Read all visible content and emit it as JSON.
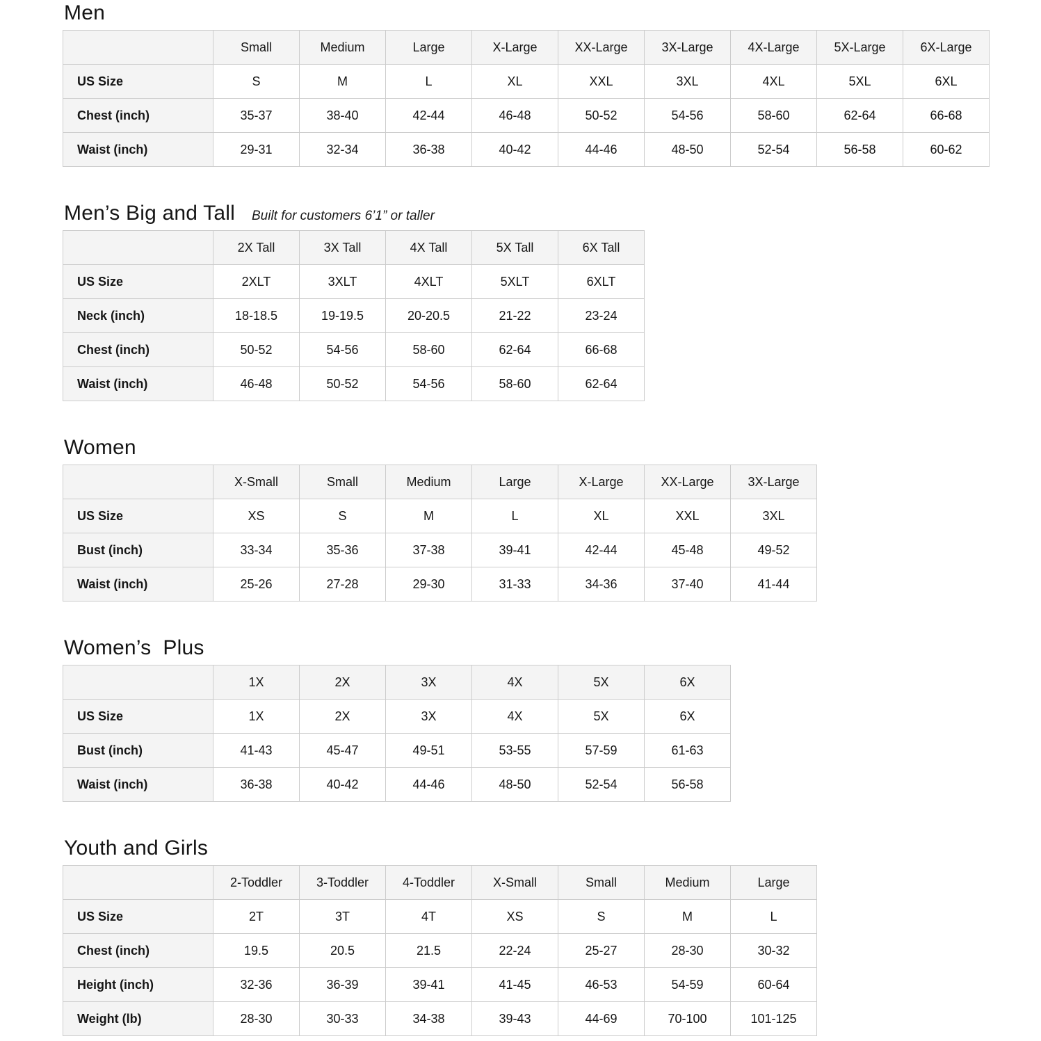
{
  "colors": {
    "header_bg": "#f4f4f4",
    "label_bg": "#f4f4f4",
    "cell_bg": "#ffffff",
    "border": "#cccccc",
    "text": "#161616"
  },
  "tables": [
    {
      "id": "men",
      "title": "Men",
      "subtitle": "",
      "columns": [
        "Small",
        "Medium",
        "Large",
        "X-Large",
        "XX-Large",
        "3X-Large",
        "4X-Large",
        "5X-Large",
        "6X-Large"
      ],
      "rows": [
        {
          "label": "US Size",
          "values": [
            "S",
            "M",
            "L",
            "XL",
            "XXL",
            "3XL",
            "4XL",
            "5XL",
            "6XL"
          ]
        },
        {
          "label": "Chest (inch)",
          "values": [
            "35-37",
            "38-40",
            "42-44",
            "46-48",
            "50-52",
            "54-56",
            "58-60",
            "62-64",
            "66-68"
          ]
        },
        {
          "label": "Waist (inch)",
          "values": [
            "29-31",
            "32-34",
            "36-38",
            "40-42",
            "44-46",
            "48-50",
            "52-54",
            "56-58",
            "60-62"
          ]
        }
      ]
    },
    {
      "id": "mens-big-and-tall",
      "title": "Men’s Big and Tall",
      "subtitle": "Built for customers 6’1” or taller",
      "columns": [
        "2X Tall",
        "3X Tall",
        "4X Tall",
        "5X Tall",
        "6X Tall"
      ],
      "rows": [
        {
          "label": "US Size",
          "values": [
            "2XLT",
            "3XLT",
            "4XLT",
            "5XLT",
            "6XLT"
          ]
        },
        {
          "label": "Neck (inch)",
          "values": [
            "18-18.5",
            "19-19.5",
            "20-20.5",
            "21-22",
            "23-24"
          ]
        },
        {
          "label": "Chest (inch)",
          "values": [
            "50-52",
            "54-56",
            "58-60",
            "62-64",
            "66-68"
          ]
        },
        {
          "label": "Waist (inch)",
          "values": [
            "46-48",
            "50-52",
            "54-56",
            "58-60",
            "62-64"
          ]
        }
      ]
    },
    {
      "id": "women",
      "title": "Women",
      "subtitle": "",
      "columns": [
        "X-Small",
        "Small",
        "Medium",
        "Large",
        "X-Large",
        "XX-Large",
        "3X-Large"
      ],
      "rows": [
        {
          "label": "US Size",
          "values": [
            "XS",
            "S",
            "M",
            "L",
            "XL",
            "XXL",
            "3XL"
          ]
        },
        {
          "label": "Bust (inch)",
          "values": [
            "33-34",
            "35-36",
            "37-38",
            "39-41",
            "42-44",
            "45-48",
            "49-52"
          ]
        },
        {
          "label": "Waist (inch)",
          "values": [
            "25-26",
            "27-28",
            "29-30",
            "31-33",
            "34-36",
            "37-40",
            "41-44"
          ]
        }
      ]
    },
    {
      "id": "womens-plus",
      "title": "Women’s  Plus",
      "subtitle": "",
      "columns": [
        "1X",
        "2X",
        "3X",
        "4X",
        "5X",
        "6X"
      ],
      "rows": [
        {
          "label": "US Size",
          "values": [
            "1X",
            "2X",
            "3X",
            "4X",
            "5X",
            "6X"
          ]
        },
        {
          "label": "Bust (inch)",
          "values": [
            "41-43",
            "45-47",
            "49-51",
            "53-55",
            "57-59",
            "61-63"
          ]
        },
        {
          "label": "Waist (inch)",
          "values": [
            "36-38",
            "40-42",
            "44-46",
            "48-50",
            "52-54",
            "56-58"
          ]
        }
      ]
    },
    {
      "id": "youth-and-girls",
      "title": "Youth and Girls",
      "subtitle": "",
      "columns": [
        "2-Toddler",
        "3-Toddler",
        "4-Toddler",
        "X-Small",
        "Small",
        "Medium",
        "Large"
      ],
      "rows": [
        {
          "label": "US Size",
          "values": [
            "2T",
            "3T",
            "4T",
            "XS",
            "S",
            "M",
            "L"
          ]
        },
        {
          "label": "Chest (inch)",
          "values": [
            "19.5",
            "20.5",
            "21.5",
            "22-24",
            "25-27",
            "28-30",
            "30-32"
          ]
        },
        {
          "label": "Height (inch)",
          "values": [
            "32-36",
            "36-39",
            "39-41",
            "41-45",
            "46-53",
            "54-59",
            "60-64"
          ]
        },
        {
          "label": "Weight (lb)",
          "values": [
            "28-30",
            "30-33",
            "34-38",
            "39-43",
            "44-69",
            "70-100",
            "101-125"
          ]
        }
      ]
    }
  ]
}
